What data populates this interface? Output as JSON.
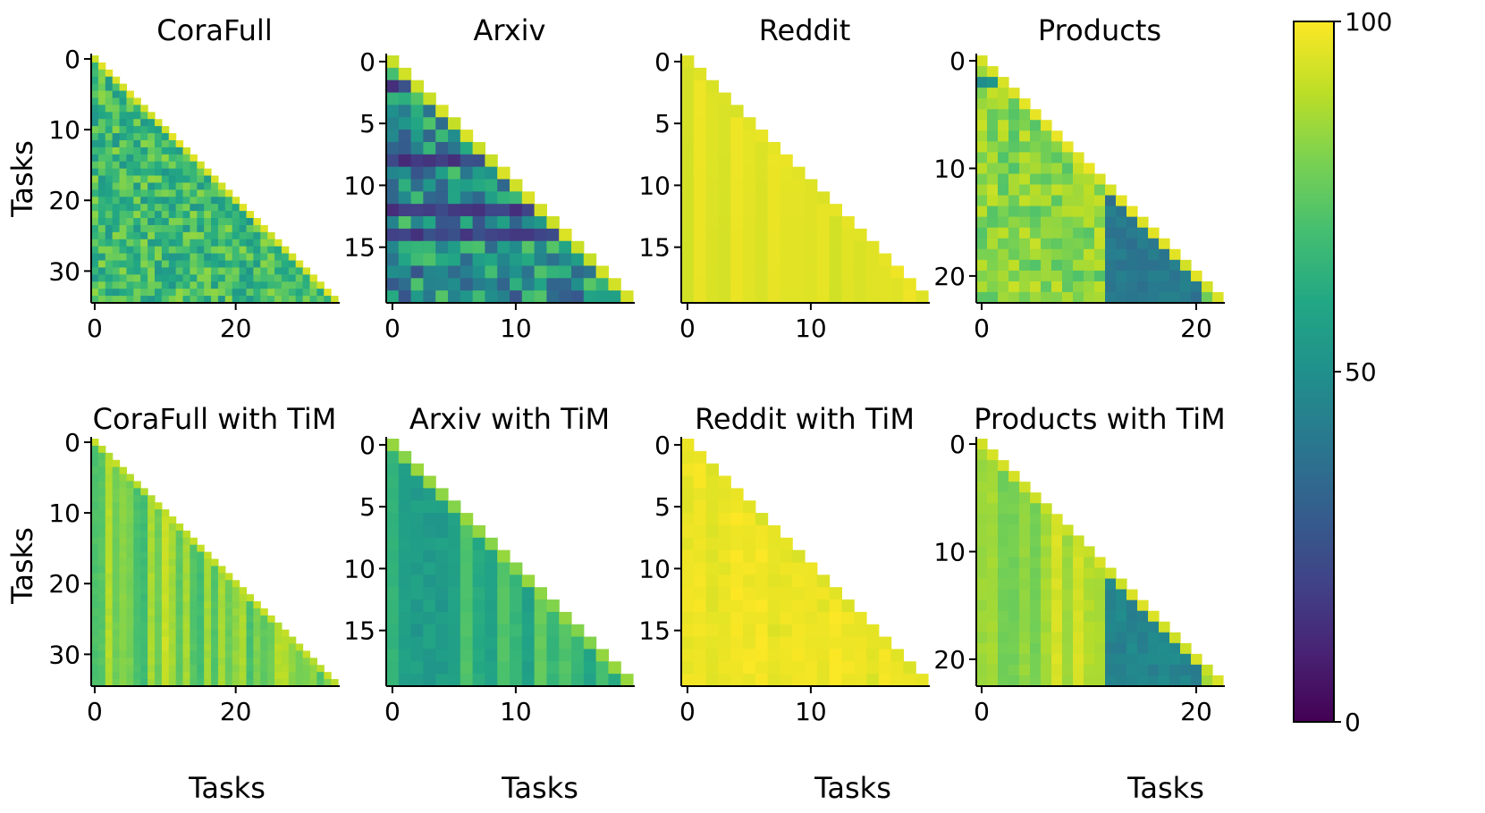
{
  "chart_data": {
    "type": "heatmap",
    "colormap": "viridis",
    "colorbar": {
      "min": 0,
      "max": 100,
      "ticks": [
        0,
        50,
        100
      ]
    },
    "shared_ylabel": "Tasks",
    "shared_xlabel": "Tasks",
    "panels": [
      {
        "title": "CoraFull",
        "n_tasks": 35,
        "xticks": [
          0,
          20
        ],
        "yticks": [
          0,
          10,
          20,
          30
        ],
        "mode": "noisy",
        "base": 68,
        "spread": 16,
        "diag": 96,
        "low_rows": [],
        "low_cols": [],
        "low_value": 30
      },
      {
        "title": "Arxiv",
        "n_tasks": 20,
        "xticks": [
          0,
          10
        ],
        "yticks": [
          0,
          5,
          10,
          15
        ],
        "mode": "noisy",
        "base": 50,
        "spread": 24,
        "diag": 95,
        "low_rows": [
          2,
          8,
          12,
          14
        ],
        "low_cols": [],
        "low_value": 12
      },
      {
        "title": "Reddit",
        "n_tasks": 20,
        "xticks": [
          0,
          10
        ],
        "yticks": [
          0,
          5,
          10,
          15
        ],
        "mode": "smooth",
        "base": 96,
        "spread": 3,
        "diag": 98,
        "low_rows": [],
        "low_cols": [],
        "low_value": 90
      },
      {
        "title": "Products",
        "n_tasks": 23,
        "xticks": [
          0,
          20
        ],
        "yticks": [
          0,
          10,
          20
        ],
        "mode": "noisy",
        "base": 82,
        "spread": 10,
        "diag": 97,
        "low_rows": [
          2
        ],
        "low_cols": [
          12,
          13,
          14,
          15,
          16,
          17,
          18,
          19,
          20
        ],
        "low_value": 40
      },
      {
        "title": "CoraFull with TiM",
        "n_tasks": 35,
        "xticks": [
          0,
          20
        ],
        "yticks": [
          0,
          10,
          20,
          30
        ],
        "mode": "columns",
        "base": 80,
        "spread": 12,
        "diag": 92,
        "low_rows": [],
        "low_cols": [],
        "low_value": 60
      },
      {
        "title": "Arxiv with TiM",
        "n_tasks": 20,
        "xticks": [
          0,
          10
        ],
        "yticks": [
          0,
          5,
          10,
          15
        ],
        "mode": "columns",
        "base": 68,
        "spread": 12,
        "diag": 85,
        "low_rows": [],
        "low_cols": [
          2,
          3,
          4
        ],
        "low_value": 55
      },
      {
        "title": "Reddit with TiM",
        "n_tasks": 20,
        "xticks": [
          0,
          10
        ],
        "yticks": [
          0,
          5,
          10,
          15
        ],
        "mode": "columns",
        "base": 97,
        "spread": 2,
        "diag": 98,
        "low_rows": [],
        "low_cols": [],
        "low_value": 92
      },
      {
        "title": "Products with TiM",
        "n_tasks": 23,
        "xticks": [
          0,
          20
        ],
        "yticks": [
          0,
          10,
          20
        ],
        "mode": "columns",
        "base": 86,
        "spread": 8,
        "diag": 95,
        "low_rows": [],
        "low_cols": [
          12,
          13,
          14,
          15,
          16,
          17,
          18,
          19,
          20
        ],
        "low_value": 45
      }
    ]
  }
}
